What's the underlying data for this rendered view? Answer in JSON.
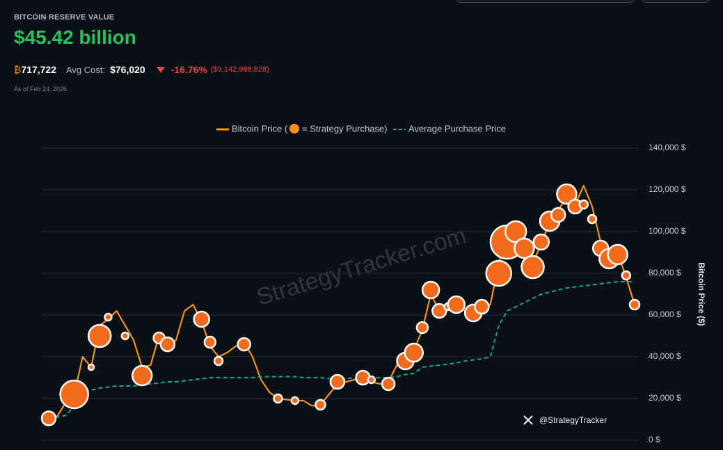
{
  "header": {
    "label": "BITCOIN RESERVE VALUE",
    "value": "$45.42 billion",
    "currency_symbol": "₿",
    "btc_holdings": "717,722",
    "avg_cost_label": "Avg Cost:",
    "avg_cost": "$76,020",
    "change_percent": "-16.76%",
    "change_amount": "($9,142,986,828)",
    "as_of": "As of Feb 24, 2026"
  },
  "chart_data": {
    "type": "line",
    "watermark": "StrategyTracker.com",
    "credit": "@StrategyTracker",
    "y_label": "Bitcoin Price ($)",
    "ylim": [
      0,
      140000
    ],
    "yticks": [
      {
        "value": 0,
        "label": "0 $"
      },
      {
        "value": 20000,
        "label": "20,000 $"
      },
      {
        "value": 40000,
        "label": "40,000 $"
      },
      {
        "value": 60000,
        "label": "60,000 $"
      },
      {
        "value": 80000,
        "label": "80,000 $"
      },
      {
        "value": 100000,
        "label": "100,000 $"
      },
      {
        "value": 120000,
        "label": "120,000 $"
      },
      {
        "value": 140000,
        "label": "140,000 $"
      }
    ],
    "grid": true,
    "series": [
      {
        "name": "Bitcoin Price (",
        "type": "line",
        "color": "#f7931a",
        "values": [
          10500,
          11500,
          18000,
          22000,
          40000,
          35000,
          55000,
          58000,
          62000,
          55000,
          48000,
          35000,
          36000,
          50000,
          45000,
          48000,
          62000,
          65000,
          57000,
          45000,
          40000,
          42000,
          45000,
          47000,
          40000,
          29000,
          23000,
          20000,
          19500,
          19000,
          19000,
          16500,
          17000,
          22000,
          27000,
          28000,
          29000,
          30000,
          28000,
          27000,
          28000,
          36000,
          40000,
          43000,
          53000,
          70000,
          62000,
          65000,
          68000,
          62000,
          60000,
          64000,
          65000,
          85000,
          100000,
          95000,
          92000,
          85000,
          94000,
          105000,
          110000,
          117000,
          113000,
          122000,
          112000,
          95000,
          88000,
          90000,
          78000,
          65000
        ]
      },
      {
        "name": "= Strategy Purchase)",
        "type": "scatter",
        "color": "#f26b1d",
        "values": [
          10500,
          null,
          null,
          22000,
          null,
          35000,
          50000,
          59000,
          null,
          50000,
          null,
          31000,
          null,
          49000,
          46000,
          null,
          null,
          null,
          58000,
          47000,
          38000,
          null,
          null,
          46000,
          null,
          null,
          null,
          20000,
          null,
          19000,
          null,
          null,
          17000,
          null,
          28000,
          null,
          null,
          30000,
          29000,
          null,
          27000,
          null,
          38000,
          42000,
          54000,
          72000,
          62000,
          64000,
          65000,
          null,
          61000,
          64000,
          null,
          80000,
          95000,
          100000,
          92000,
          83000,
          95000,
          105000,
          108000,
          118000,
          112000,
          113000,
          106000,
          92000,
          87000,
          89000,
          79000,
          65000
        ],
        "sizes": [
          10,
          null,
          null,
          20,
          null,
          4,
          16,
          5,
          null,
          5,
          null,
          14,
          null,
          8,
          10,
          null,
          null,
          null,
          11,
          8,
          6,
          null,
          null,
          9,
          null,
          null,
          null,
          6,
          null,
          5,
          null,
          null,
          7,
          null,
          10,
          null,
          null,
          10,
          5,
          null,
          9,
          null,
          12,
          13,
          8,
          12,
          10,
          5,
          12,
          null,
          12,
          10,
          null,
          18,
          24,
          15,
          14,
          16,
          11,
          14,
          10,
          14,
          10,
          6,
          6,
          11,
          14,
          14,
          6,
          7
        ]
      },
      {
        "name": "Average Purchase Price",
        "type": "line",
        "dash": true,
        "color": "#17a983",
        "values": [
          10000,
          11000,
          12000,
          16000,
          23000,
          24000,
          25000,
          25500,
          26000,
          26000,
          26000,
          26500,
          27000,
          27500,
          28000,
          28000,
          28500,
          29000,
          29500,
          30000,
          30000,
          30000,
          30000,
          30000,
          30000,
          30500,
          30500,
          30500,
          30500,
          30500,
          30000,
          30000,
          30000,
          29500,
          29500,
          29500,
          30000,
          30000,
          30000,
          30000,
          30000,
          30500,
          31500,
          32000,
          35000,
          35500,
          36000,
          36500,
          37000,
          38000,
          38500,
          39000,
          40000,
          55000,
          62000,
          64000,
          66000,
          68000,
          70000,
          71000,
          72000,
          73000,
          73500,
          74000,
          74500,
          75000,
          75500,
          76000,
          76000,
          76000
        ]
      }
    ]
  }
}
